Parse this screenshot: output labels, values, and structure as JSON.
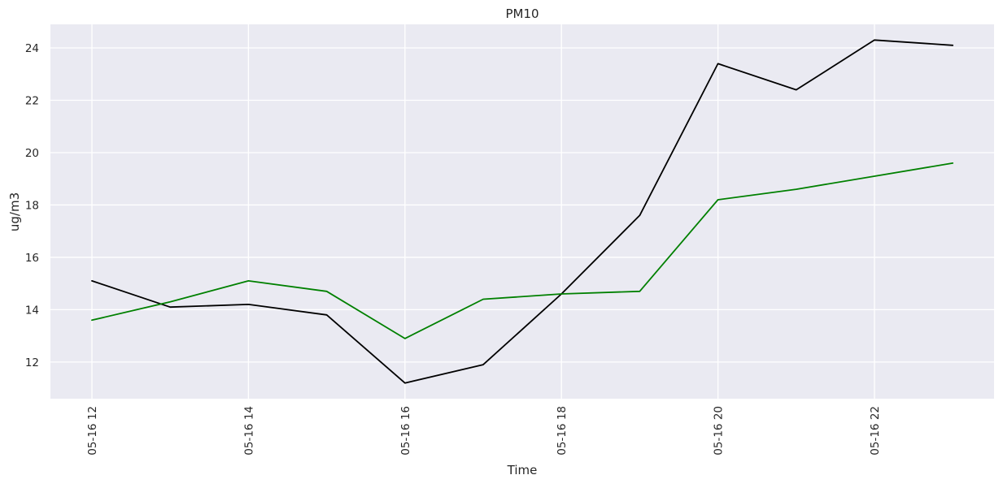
{
  "chart_data": {
    "type": "line",
    "title": "PM10",
    "xlabel": "Time",
    "ylabel": "ug/m3",
    "x": [
      "05-16 12",
      "05-16 13",
      "05-16 14",
      "05-16 15",
      "05-16 16",
      "05-16 17",
      "05-16 18",
      "05-16 19",
      "05-16 20",
      "05-16 21",
      "05-16 22",
      "05-16 23"
    ],
    "x_ticks": [
      "05-16 12",
      "05-16 14",
      "05-16 16",
      "05-16 18",
      "05-16 20",
      "05-16 22"
    ],
    "y_ticks": [
      12,
      14,
      16,
      18,
      20,
      22,
      24
    ],
    "ylim": [
      10.6,
      24.9
    ],
    "grid": true,
    "series": [
      {
        "color": "#000000",
        "values": [
          15.1,
          14.1,
          14.2,
          13.8,
          11.2,
          11.9,
          14.6,
          17.6,
          23.4,
          22.4,
          24.3,
          24.1
        ]
      },
      {
        "color": "#008000",
        "values": [
          13.6,
          14.3,
          15.1,
          14.7,
          12.9,
          14.4,
          14.6,
          14.7,
          18.2,
          18.6,
          19.1,
          19.6
        ]
      }
    ]
  }
}
